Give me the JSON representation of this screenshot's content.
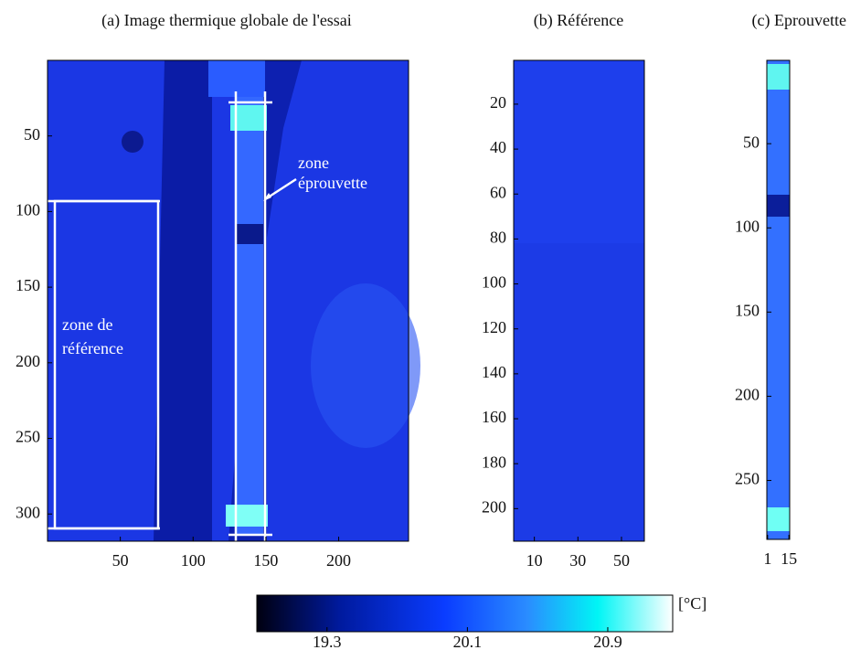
{
  "chart_data": [
    {
      "type": "heatmap",
      "title": "(a) Image thermique globale de l'essai",
      "xlim": [
        0,
        248
      ],
      "ylim": [
        0,
        318
      ],
      "xticks": [
        50,
        100,
        150,
        200
      ],
      "yticks": [
        50,
        100,
        150,
        200,
        250,
        300
      ],
      "annotations": [
        "zone",
        "éprouvette",
        "zone de",
        "référence"
      ]
    },
    {
      "type": "heatmap",
      "title": "(b) Référence",
      "xlim": [
        0.5,
        60.5
      ],
      "ylim": [
        0.5,
        214.5
      ],
      "xticks": [
        10,
        30,
        50
      ],
      "yticks": [
        20,
        40,
        60,
        80,
        100,
        120,
        140,
        160,
        180,
        200
      ]
    },
    {
      "type": "heatmap",
      "title": "(c) Eprouvette",
      "xlim": [
        0.5,
        15.5
      ],
      "ylim": [
        0.5,
        285
      ],
      "xticks": [
        1,
        15
      ],
      "yticks": [
        50,
        100,
        150,
        200,
        250
      ]
    },
    {
      "type": "colorbar",
      "label": "[°C]",
      "xlim": [
        18.9,
        21.27
      ],
      "xticks": [
        19.3,
        20.1,
        20.9
      ]
    }
  ]
}
